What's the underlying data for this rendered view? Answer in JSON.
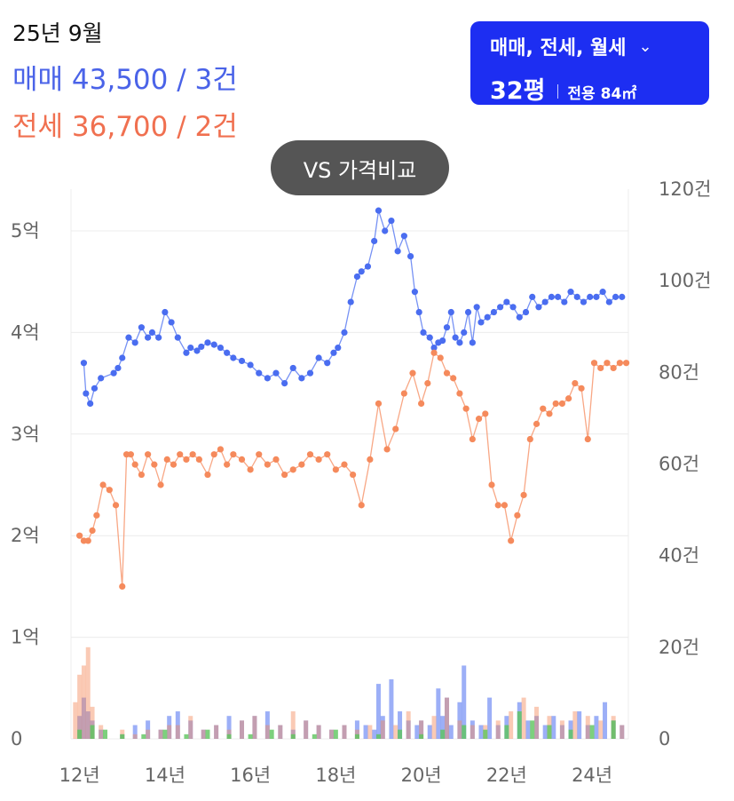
{
  "header": {
    "date": "25년 9월",
    "sale_label": "매매",
    "sale_value": "43,500 / 3건",
    "jeonse_label": "전세",
    "jeonse_value": "36,700 / 2건"
  },
  "filter_button": {
    "types": "매매, 전세, 월세",
    "size_pyeong": "32평",
    "exclusive_area": "전용 84㎡"
  },
  "vs_button": {
    "label": "VS 가격비교"
  },
  "colors": {
    "sale": "#4a6df0",
    "jeonse": "#f58a5c",
    "sale_text": "#4a63e8",
    "jeonse_text": "#f07050",
    "monthly": "#5cc45c",
    "accent": "#1d2ef2"
  },
  "chart_data": {
    "type": "line",
    "x_tick_labels": [
      "12년",
      "14년",
      "16년",
      "18년",
      "20년",
      "22년",
      "24년"
    ],
    "x_ticks": [
      2012,
      2014,
      2016,
      2018,
      2020,
      2022,
      2024
    ],
    "xlim": [
      2011.8,
      2024.85
    ],
    "left_axis": {
      "tick_labels": [
        "0",
        "1억",
        "2억",
        "3억",
        "4억",
        "5억"
      ],
      "ticks": [
        0,
        1,
        2,
        3,
        4,
        5
      ],
      "ylim": [
        0,
        5.2
      ]
    },
    "right_axis": {
      "tick_labels": [
        "0",
        "20건",
        "40건",
        "60건",
        "80건",
        "100건",
        "120건"
      ],
      "ticks": [
        0,
        20,
        40,
        60,
        80,
        100,
        120
      ],
      "ylim": [
        0,
        120
      ]
    },
    "grid": true,
    "series": [
      {
        "id": "sale",
        "x": [
          2012.1,
          2012.15,
          2012.25,
          2012.35,
          2012.5,
          2012.8,
          2012.9,
          2013.0,
          2013.15,
          2013.3,
          2013.45,
          2013.6,
          2013.7,
          2013.85,
          2014.0,
          2014.15,
          2014.3,
          2014.5,
          2014.6,
          2014.75,
          2014.85,
          2015.0,
          2015.15,
          2015.3,
          2015.45,
          2015.6,
          2015.8,
          2016.0,
          2016.2,
          2016.4,
          2016.6,
          2016.8,
          2017.0,
          2017.2,
          2017.4,
          2017.6,
          2017.8,
          2017.95,
          2018.05,
          2018.2,
          2018.35,
          2018.5,
          2018.6,
          2018.75,
          2018.9,
          2019.0,
          2019.15,
          2019.3,
          2019.45,
          2019.6,
          2019.75,
          2019.85,
          2019.95,
          2020.05,
          2020.2,
          2020.3,
          2020.4,
          2020.5,
          2020.6,
          2020.7,
          2020.8,
          2020.9,
          2021.0,
          2021.1,
          2021.2,
          2021.3,
          2021.4,
          2021.55,
          2021.7,
          2021.85,
          2022.0,
          2022.15,
          2022.3,
          2022.45,
          2022.6,
          2022.75,
          2022.9,
          2023.05,
          2023.2,
          2023.35,
          2023.5,
          2023.65,
          2023.8,
          2023.95,
          2024.1,
          2024.25,
          2024.4,
          2024.55,
          2024.7
        ],
        "y": [
          3.7,
          3.4,
          3.3,
          3.45,
          3.55,
          3.6,
          3.65,
          3.75,
          3.95,
          3.9,
          4.05,
          3.95,
          4.0,
          3.95,
          4.2,
          4.1,
          3.95,
          3.8,
          3.85,
          3.82,
          3.86,
          3.9,
          3.88,
          3.85,
          3.8,
          3.75,
          3.72,
          3.68,
          3.6,
          3.55,
          3.6,
          3.5,
          3.65,
          3.55,
          3.6,
          3.75,
          3.7,
          3.8,
          3.85,
          4.0,
          4.3,
          4.55,
          4.6,
          4.65,
          4.9,
          5.2,
          5.0,
          5.1,
          4.8,
          4.95,
          4.75,
          4.4,
          4.2,
          4.0,
          3.95,
          3.85,
          3.9,
          3.92,
          4.05,
          4.2,
          3.95,
          3.9,
          4.0,
          4.2,
          3.9,
          4.25,
          4.1,
          4.15,
          4.2,
          4.25,
          4.3,
          4.25,
          4.15,
          4.2,
          4.35,
          4.25,
          4.3,
          4.35,
          4.35,
          4.3,
          4.4,
          4.35,
          4.3,
          4.35,
          4.35,
          4.4,
          4.3,
          4.35,
          4.35
        ]
      },
      {
        "id": "jeonse",
        "x": [
          2012.0,
          2012.1,
          2012.2,
          2012.3,
          2012.4,
          2012.55,
          2012.7,
          2012.85,
          2013.0,
          2013.1,
          2013.2,
          2013.3,
          2013.45,
          2013.6,
          2013.75,
          2013.9,
          2014.05,
          2014.2,
          2014.35,
          2014.5,
          2014.65,
          2014.8,
          2015.0,
          2015.15,
          2015.3,
          2015.45,
          2015.6,
          2015.8,
          2016.0,
          2016.2,
          2016.4,
          2016.6,
          2016.8,
          2017.0,
          2017.2,
          2017.4,
          2017.6,
          2017.8,
          2018.0,
          2018.2,
          2018.4,
          2018.6,
          2018.8,
          2019.0,
          2019.2,
          2019.4,
          2019.6,
          2019.8,
          2020.0,
          2020.15,
          2020.3,
          2020.45,
          2020.6,
          2020.75,
          2020.9,
          2021.05,
          2021.2,
          2021.35,
          2021.5,
          2021.65,
          2021.8,
          2021.95,
          2022.1,
          2022.25,
          2022.4,
          2022.55,
          2022.7,
          2022.85,
          2023.0,
          2023.15,
          2023.3,
          2023.45,
          2023.6,
          2023.75,
          2023.9,
          2024.05,
          2024.2,
          2024.35,
          2024.5,
          2024.65,
          2024.8
        ],
        "y": [
          2.0,
          1.95,
          1.95,
          2.05,
          2.2,
          2.5,
          2.45,
          2.3,
          1.5,
          2.8,
          2.8,
          2.7,
          2.6,
          2.8,
          2.7,
          2.5,
          2.75,
          2.7,
          2.8,
          2.75,
          2.8,
          2.75,
          2.6,
          2.8,
          2.85,
          2.7,
          2.8,
          2.75,
          2.65,
          2.8,
          2.7,
          2.75,
          2.6,
          2.65,
          2.7,
          2.8,
          2.75,
          2.8,
          2.65,
          2.7,
          2.6,
          2.3,
          2.75,
          3.3,
          2.85,
          3.05,
          3.4,
          3.6,
          3.3,
          3.5,
          3.8,
          3.75,
          3.6,
          3.55,
          3.4,
          3.25,
          2.95,
          3.15,
          3.2,
          2.5,
          2.3,
          2.3,
          1.95,
          2.2,
          2.4,
          2.95,
          3.1,
          3.25,
          3.2,
          3.3,
          3.3,
          3.35,
          3.5,
          3.45,
          2.95,
          3.7,
          3.65,
          3.7,
          3.65,
          3.7,
          3.7
        ]
      }
    ],
    "volume_series": [
      {
        "id": "sale_volume",
        "x": [
          2012.0,
          2012.1,
          2012.2,
          2012.3,
          2012.5,
          2013.0,
          2013.3,
          2013.6,
          2013.9,
          2014.1,
          2014.3,
          2014.6,
          2014.9,
          2015.2,
          2015.5,
          2015.8,
          2016.1,
          2016.4,
          2016.7,
          2017.0,
          2017.3,
          2017.6,
          2017.9,
          2018.2,
          2018.5,
          2018.7,
          2018.9,
          2019.0,
          2019.1,
          2019.3,
          2019.5,
          2019.7,
          2019.9,
          2020.0,
          2020.2,
          2020.4,
          2020.5,
          2020.6,
          2020.7,
          2020.9,
          2021.0,
          2021.2,
          2021.4,
          2021.6,
          2021.8,
          2022.0,
          2022.3,
          2022.5,
          2022.7,
          2022.9,
          2023.1,
          2023.3,
          2023.5,
          2023.7,
          2023.9,
          2024.1,
          2024.3,
          2024.5,
          2024.7
        ],
        "y": [
          5,
          9,
          6,
          4,
          2,
          1,
          3,
          4,
          2,
          5,
          6,
          4,
          2,
          3,
          5,
          4,
          5,
          6,
          3,
          2,
          4,
          3,
          2,
          3,
          4,
          3,
          2,
          12,
          5,
          13,
          6,
          4,
          3,
          4,
          3,
          11,
          5,
          9,
          3,
          8,
          16,
          4,
          3,
          9,
          3,
          5,
          8,
          4,
          5,
          3,
          5,
          3,
          4,
          6,
          3,
          5,
          8,
          4,
          3
        ]
      },
      {
        "id": "jeonse_volume",
        "x": [
          2011.9,
          2012.0,
          2012.1,
          2012.2,
          2012.3,
          2012.5,
          2013.0,
          2013.3,
          2013.6,
          2013.9,
          2014.1,
          2014.3,
          2014.6,
          2014.9,
          2015.2,
          2015.5,
          2015.8,
          2016.1,
          2016.4,
          2016.7,
          2017.0,
          2017.3,
          2017.6,
          2017.9,
          2018.2,
          2018.5,
          2018.8,
          2019.1,
          2019.4,
          2019.7,
          2020.0,
          2020.3,
          2020.6,
          2020.9,
          2021.2,
          2021.5,
          2021.8,
          2022.1,
          2022.4,
          2022.7,
          2023.0,
          2023.3,
          2023.6,
          2023.9,
          2024.2,
          2024.5,
          2024.7
        ],
        "y": [
          8,
          14,
          16,
          20,
          7,
          3,
          2,
          1,
          2,
          2,
          3,
          3,
          5,
          2,
          3,
          2,
          4,
          5,
          3,
          3,
          6,
          4,
          3,
          2,
          3,
          2,
          3,
          4,
          3,
          6,
          4,
          5,
          9,
          4,
          3,
          3,
          4,
          6,
          9,
          7,
          5,
          4,
          6,
          5,
          4,
          5,
          3
        ]
      },
      {
        "id": "monthly_volume",
        "x": [
          2012.0,
          2012.3,
          2012.6,
          2013.0,
          2013.5,
          2014.0,
          2014.5,
          2015.0,
          2015.5,
          2016.0,
          2016.5,
          2017.0,
          2017.5,
          2018.0,
          2018.5,
          2019.0,
          2019.5,
          2020.0,
          2020.5,
          2021.0,
          2021.5,
          2022.0,
          2022.3,
          2022.6,
          2023.0,
          2023.5,
          2024.0,
          2024.5
        ],
        "y": [
          2,
          3,
          2,
          1,
          1,
          2,
          1,
          2,
          1,
          1,
          2,
          1,
          1,
          2,
          1,
          1,
          2,
          1,
          2,
          3,
          2,
          3,
          6,
          4,
          3,
          2,
          3,
          4
        ]
      }
    ]
  }
}
